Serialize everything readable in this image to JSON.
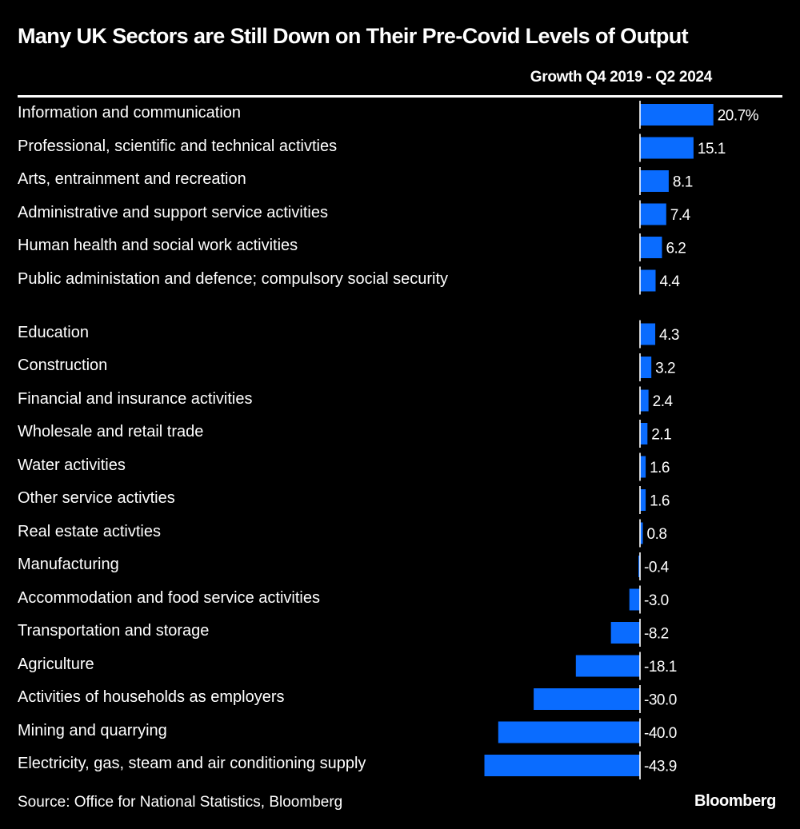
{
  "title": "Many UK Sectors are Still Down on Their Pre-Covid Levels of Output",
  "column_header": "Growth Q4 2019 - Q2 2024",
  "source": "Source: Office for National Statistics, Bloomberg",
  "brand": "Bloomberg",
  "colors": {
    "background": "#000000",
    "bar": "#0a6cff",
    "text": "#ffffff",
    "zero_line": "#ffffff"
  },
  "chart_data": {
    "type": "bar",
    "orientation": "horizontal",
    "title": "Many UK Sectors are Still Down on Their Pre-Covid Levels of Output",
    "subtitle": "Growth Q4 2019 - Q2 2024",
    "xlabel": "",
    "ylabel": "",
    "unit": "%",
    "grid": false,
    "legend": "none",
    "categories": [
      "Information and communication",
      "Professional, scientific and technical activties",
      "Arts, entrainment and recreation",
      "Administrative and support service activities",
      "Human health and social work activities",
      "Public administation and defence; compulsory social security",
      "Education",
      "Construction",
      "Financial and insurance activities",
      "Wholesale and retail trade",
      "Water activities",
      "Other service activties",
      "Real estate activties",
      "Manufacturing",
      "Accommodation and food service activities",
      "Transportation and storage",
      "Agriculture",
      "Activities of households as employers",
      "Mining and quarrying",
      "Electricity, gas, steam and air conditioning supply"
    ],
    "values": [
      20.7,
      15.1,
      8.1,
      7.4,
      6.2,
      4.4,
      4.3,
      3.2,
      2.4,
      2.1,
      1.6,
      1.6,
      0.8,
      -0.4,
      -3.0,
      -8.2,
      -18.1,
      -30.0,
      -40.0,
      -43.9
    ],
    "value_labels": [
      "20.7%",
      "15.1",
      "8.1",
      "7.4",
      "6.2",
      "4.4",
      "4.3",
      "3.2",
      "2.4",
      "2.1",
      "1.6",
      "1.6",
      "0.8",
      "-0.4",
      "-3.0",
      "-8.2",
      "-18.1",
      "-30.0",
      "-40.0",
      "-43.9"
    ],
    "xlim": [
      -43.9,
      20.7
    ]
  }
}
